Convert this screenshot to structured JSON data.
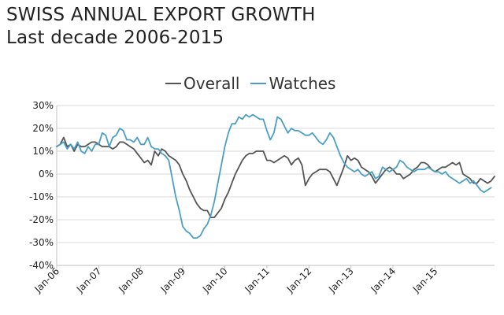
{
  "header": {
    "title": "SWISS ANNUAL EXPORT GROWTH",
    "subtitle": "Last decade 2006-2015"
  },
  "colors": {
    "overall": "#555555",
    "watches": "#4a9fc4",
    "grid": "#d9d9d9",
    "axis": "#bfbfbf"
  },
  "chart_data": {
    "type": "line",
    "ylim": [
      -40,
      30
    ],
    "yticks": [
      "30%",
      "20%",
      "10%",
      "0%",
      "-10%",
      "-20%",
      "-30%",
      "-40%"
    ],
    "ytick_values": [
      30,
      20,
      10,
      0,
      -10,
      -20,
      -30,
      -40
    ],
    "xtick_labels": [
      "Jan-06",
      "Jan-07",
      "Jan-08",
      "Jan-09",
      "Jan-10",
      "Jan-11",
      "Jan-12",
      "Jan-13",
      "Jan-14",
      "Jan-15"
    ],
    "x_start": "Jan-06",
    "grid": "horizontal",
    "legend": "top-center",
    "series": [
      {
        "name": "Overall",
        "values": [
          12,
          13,
          16,
          12,
          13,
          10,
          13,
          12,
          12,
          13,
          14,
          14,
          13,
          12,
          12,
          12,
          11,
          12,
          14,
          14,
          13,
          12,
          11,
          9,
          7,
          5,
          6,
          4,
          10,
          8,
          11,
          10,
          8,
          7,
          6,
          4,
          0,
          -3,
          -7,
          -10,
          -13,
          -15,
          -16,
          -16,
          -19,
          -19,
          -17,
          -15,
          -11,
          -8,
          -4,
          0,
          3,
          6,
          8,
          9,
          9,
          10,
          10,
          10,
          6,
          6,
          5,
          6,
          7,
          8,
          7,
          4,
          6,
          7,
          4,
          -5,
          -2,
          0,
          1,
          2,
          2,
          2,
          1,
          -2,
          -5,
          -1,
          3,
          8,
          6,
          7,
          6,
          3,
          2,
          1,
          -1,
          -4,
          -2,
          0,
          2,
          3,
          2,
          0,
          0,
          -2,
          -1,
          0,
          2,
          3,
          5,
          5,
          4,
          2,
          1,
          2,
          3,
          3,
          4,
          5,
          4,
          5,
          0,
          -1,
          -2,
          -4,
          -4,
          -2,
          -3,
          -4,
          -3,
          -1
        ],
        "color": "#555555"
      },
      {
        "name": "Watches",
        "values": [
          12,
          13,
          14,
          11,
          13,
          11,
          14,
          10,
          9,
          12,
          10,
          13,
          13,
          18,
          17,
          12,
          16,
          17,
          20,
          19,
          15,
          15,
          14,
          16,
          13,
          13,
          16,
          12,
          11,
          11,
          9,
          8,
          6,
          -2,
          -10,
          -16,
          -23,
          -25,
          -26,
          -28,
          -28,
          -27,
          -24,
          -22,
          -18,
          -12,
          -4,
          4,
          12,
          18,
          22,
          22,
          25,
          24,
          26,
          25,
          26,
          25,
          24,
          24,
          19,
          15,
          18,
          25,
          24,
          21,
          18,
          20,
          19,
          19,
          18,
          17,
          17,
          18,
          16,
          14,
          13,
          15,
          18,
          16,
          12,
          8,
          5,
          3,
          2,
          1,
          2,
          0,
          -1,
          0,
          1,
          -2,
          -1,
          3,
          2,
          1,
          2,
          3,
          6,
          5,
          3,
          2,
          1,
          2,
          2,
          2,
          3,
          2,
          1,
          1,
          0,
          1,
          -1,
          -2,
          -3,
          -4,
          -3,
          -2,
          -4,
          -3,
          -5,
          -7,
          -8,
          -7,
          -6
        ]
      }
    ]
  }
}
